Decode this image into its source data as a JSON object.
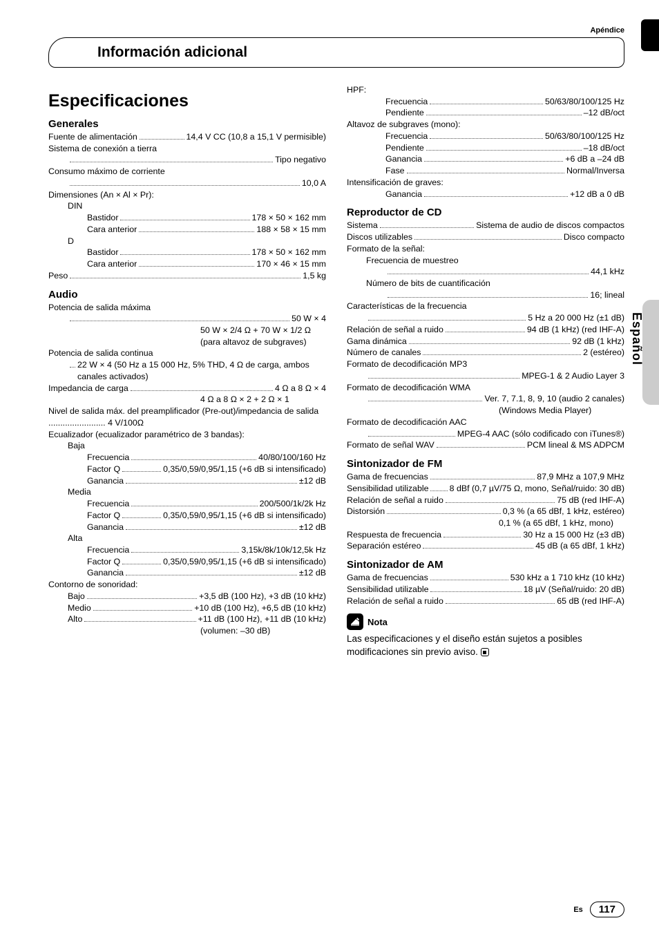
{
  "appendix_label": "Apéndice",
  "header_title": "Información adicional",
  "side_lang": "Español",
  "footer_es": "Es",
  "footer_page": "117",
  "main_title": "Especificaciones",
  "sections": {
    "generales": {
      "title": "Generales",
      "items": [
        {
          "l": "Fuente de alimentación",
          "v": "14,4 V CC (10,8 a 15,1 V permisible)"
        },
        {
          "l": "Sistema de conexión a tierra",
          "v": "Tipo negativo",
          "break": true
        },
        {
          "l": "Consumo máximo de corriente",
          "v": "10,0 A",
          "break": true
        },
        {
          "plain": "Dimensiones (An × Al × Pr):"
        },
        {
          "plain": "DIN",
          "cls": "indent1"
        },
        {
          "l": "Bastidor",
          "v": "178 × 50 × 162 mm",
          "cls": "indent2"
        },
        {
          "l": "Cara anterior",
          "v": "188 × 58 × 15 mm",
          "cls": "indent2"
        },
        {
          "plain": "D",
          "cls": "indent1"
        },
        {
          "l": "Bastidor",
          "v": "178 × 50 × 162 mm",
          "cls": "indent2"
        },
        {
          "l": "Cara anterior",
          "v": "170 × 46 × 15 mm",
          "cls": "indent2"
        },
        {
          "l": "Peso",
          "v": "1,5 kg"
        }
      ]
    },
    "audio": {
      "title": "Audio",
      "items": [
        {
          "plain": "Potencia de salida máxima"
        },
        {
          "l": "",
          "v": "50 W × 4",
          "cls": "indent1",
          "dotsOnly": true
        },
        {
          "cont": "50 W × 2/4 Ω + 70 W × 1/2 Ω (para altavoz de subgraves)"
        },
        {
          "plain": "Potencia de salida continua"
        },
        {
          "l": "",
          "v": "22 W × 4 (50 Hz a 15 000 Hz, 5% THD, 4 Ω de carga, ambos canales activados)",
          "cls": "indent1",
          "dotsOnly": true
        },
        {
          "l": "Impedancia de carga",
          "v": "4 Ω a 8 Ω × 4"
        },
        {
          "cont": "4 Ω a 8 Ω × 2 + 2 Ω × 1"
        },
        {
          "plain": "Nivel de salida máx. del preamplificador (Pre-out)/impedancia de salida ........................ 4 V/100Ω"
        },
        {
          "plain": "Ecualizador (ecualizador paramétrico de 3 bandas):"
        },
        {
          "plain": "Baja",
          "cls": "indent1"
        },
        {
          "l": "Frecuencia",
          "v": "40/80/100/160 Hz",
          "cls": "indent2"
        },
        {
          "l": "Factor Q",
          "v": "0,35/0,59/0,95/1,15 (+6 dB si intensificado)",
          "cls": "indent2"
        },
        {
          "l": "Ganancia",
          "v": "±12 dB",
          "cls": "indent2"
        },
        {
          "plain": "Media",
          "cls": "indent1"
        },
        {
          "l": "Frecuencia",
          "v": "200/500/1k/2k Hz",
          "cls": "indent2"
        },
        {
          "l": "Factor Q",
          "v": "0,35/0,59/0,95/1,15 (+6 dB si intensificado)",
          "cls": "indent2"
        },
        {
          "l": "Ganancia",
          "v": "±12 dB",
          "cls": "indent2"
        },
        {
          "plain": "Alta",
          "cls": "indent1"
        },
        {
          "l": "Frecuencia",
          "v": "3,15k/8k/10k/12,5k Hz",
          "cls": "indent2"
        },
        {
          "l": "Factor Q",
          "v": "0,35/0,59/0,95/1,15 (+6 dB si intensificado)",
          "cls": "indent2"
        },
        {
          "l": "Ganancia",
          "v": "±12 dB",
          "cls": "indent2"
        },
        {
          "plain": "Contorno de sonoridad:"
        },
        {
          "l": "Bajo",
          "v": "+3,5 dB (100 Hz), +3 dB (10 kHz)",
          "cls": "indent1"
        },
        {
          "l": "Medio",
          "v": "+10 dB (100 Hz), +6,5 dB (10 kHz)",
          "cls": "indent1"
        },
        {
          "l": "Alto",
          "v": "+11 dB (100 Hz), +11 dB (10 kHz)",
          "cls": "indent1"
        },
        {
          "cont": "(volumen: –30 dB)"
        }
      ]
    },
    "audio2": {
      "items": [
        {
          "plain": "HPF:"
        },
        {
          "l": "Frecuencia",
          "v": "50/63/80/100/125 Hz",
          "cls": "indent2"
        },
        {
          "l": "Pendiente",
          "v": "–12 dB/oct",
          "cls": "indent2"
        },
        {
          "plain": "Altavoz de subgraves (mono):"
        },
        {
          "l": "Frecuencia",
          "v": "50/63/80/100/125 Hz",
          "cls": "indent2"
        },
        {
          "l": "Pendiente",
          "v": "–18 dB/oct",
          "cls": "indent2"
        },
        {
          "l": "Ganancia",
          "v": "+6 dB a –24 dB",
          "cls": "indent2"
        },
        {
          "l": "Fase",
          "v": "Normal/Inversa",
          "cls": "indent2"
        },
        {
          "plain": "Intensificación de graves:"
        },
        {
          "l": "Ganancia",
          "v": "+12 dB a 0 dB",
          "cls": "indent2"
        }
      ]
    },
    "cd": {
      "title": "Reproductor de CD",
      "items": [
        {
          "l": "Sistema",
          "v": "Sistema de audio de discos compactos"
        },
        {
          "l": "Discos utilizables",
          "v": "Disco compacto"
        },
        {
          "plain": "Formato de la señal:"
        },
        {
          "plain": "Frecuencia de muestreo",
          "cls": "indent1"
        },
        {
          "l": "",
          "v": "44,1 kHz",
          "cls": "indent2",
          "dotsOnly": true
        },
        {
          "plain": "Número de bits de cuantificación",
          "cls": "indent1"
        },
        {
          "l": "",
          "v": "16; lineal",
          "cls": "indent2",
          "dotsOnly": true
        },
        {
          "plain": "Características de la frecuencia"
        },
        {
          "l": "",
          "v": "5 Hz a 20 000 Hz (±1 dB)",
          "cls": "indent1",
          "dotsOnly": true
        },
        {
          "l": "Relación de señal a ruido",
          "v": "94 dB (1 kHz) (red IHF-A)"
        },
        {
          "l": "Gama dinámica",
          "v": "92 dB (1 kHz)"
        },
        {
          "l": "Número de canales",
          "v": "2 (estéreo)"
        },
        {
          "plain": "Formato de decodificación MP3"
        },
        {
          "l": "",
          "v": "MPEG-1 & 2 Audio Layer 3",
          "cls": "indent1",
          "dotsOnly": true
        },
        {
          "plain": "Formato de decodificación WMA"
        },
        {
          "l": "",
          "v": "Ver. 7, 7.1, 8, 9, 10 (audio 2 canales)",
          "cls": "indent1",
          "dotsOnly": true
        },
        {
          "cont": "(Windows Media Player)"
        },
        {
          "plain": "Formato de decodificación AAC"
        },
        {
          "l": "",
          "v": "MPEG-4 AAC (sólo codificado con iTunes®)",
          "cls": "indent1",
          "dotsOnly": true
        },
        {
          "l": "Formato de señal WAV",
          "v": "PCM lineal & MS ADPCM"
        }
      ]
    },
    "fm": {
      "title": "Sintonizador de FM",
      "items": [
        {
          "l": "Gama de frecuencias",
          "v": "87,9 MHz a 107,9 MHz"
        },
        {
          "l": "Sensibilidad utilizable",
          "v": "8 dBf (0,7 µV/75 Ω, mono, Señal/ruido: 30 dB)"
        },
        {
          "l": "Relación de señal a ruido",
          "v": "75 dB (red IHF-A)"
        },
        {
          "l": "Distorsión",
          "v": "0,3 % (a 65 dBf, 1 kHz, estéreo)"
        },
        {
          "cont": "0,1 % (a 65 dBf, 1 kHz, mono)"
        },
        {
          "l": "Respuesta de frecuencia",
          "v": "30 Hz a 15 000 Hz (±3 dB)"
        },
        {
          "l": "Separación estéreo",
          "v": "45 dB (a 65 dBf, 1 kHz)"
        }
      ]
    },
    "am": {
      "title": "Sintonizador de AM",
      "items": [
        {
          "l": "Gama de frecuencias",
          "v": "530 kHz a 1 710 kHz (10 kHz)"
        },
        {
          "l": "Sensibilidad utilizable",
          "v": "18 µV (Señal/ruido: 20 dB)"
        },
        {
          "l": "Relación de señal a ruido",
          "v": "65 dB (red IHF-A)"
        }
      ]
    }
  },
  "nota_label": "Nota",
  "nota_text": "Las especificaciones y el diseño están sujetos a posibles modificaciones sin previo aviso."
}
